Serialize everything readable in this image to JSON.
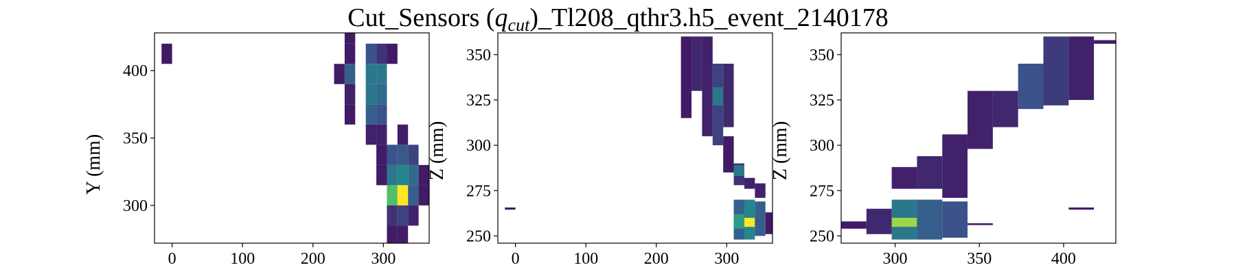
{
  "figure": {
    "title_prefix": "Cut_Sensors (",
    "title_math": "q",
    "title_sub": "cut",
    "title_suffix": ")_Tl208_qthr3.h5_event_2140178"
  },
  "colors": {
    "viridis_low": "#440154",
    "viridis_mid": "#21918c",
    "viridis_high": "#fde725"
  },
  "chart_data": [
    {
      "type": "heatmap",
      "id": "xy",
      "xlabel": "",
      "ylabel": "Y (mm)",
      "xlim": [
        -25,
        365
      ],
      "ylim": [
        272,
        428
      ],
      "xticks": [
        0,
        100,
        200,
        300
      ],
      "yticks": [
        300,
        350,
        400
      ],
      "cells": [
        {
          "x": -15,
          "y": 405,
          "w": 15,
          "h": 15,
          "v": 0.08
        },
        {
          "x": 230,
          "y": 390,
          "w": 15,
          "h": 15,
          "v": 0.08
        },
        {
          "x": 245,
          "y": 420,
          "w": 15,
          "h": 15,
          "v": 0.08
        },
        {
          "x": 245,
          "y": 405,
          "w": 15,
          "h": 15,
          "v": 0.08
        },
        {
          "x": 245,
          "y": 390,
          "w": 15,
          "h": 15,
          "v": 0.3
        },
        {
          "x": 245,
          "y": 375,
          "w": 15,
          "h": 15,
          "v": 0.1
        },
        {
          "x": 245,
          "y": 360,
          "w": 15,
          "h": 15,
          "v": 0.08
        },
        {
          "x": 275,
          "y": 405,
          "w": 15,
          "h": 15,
          "v": 0.25
        },
        {
          "x": 275,
          "y": 390,
          "w": 15,
          "h": 15,
          "v": 0.4
        },
        {
          "x": 275,
          "y": 375,
          "w": 15,
          "h": 15,
          "v": 0.4
        },
        {
          "x": 275,
          "y": 360,
          "w": 15,
          "h": 15,
          "v": 0.3
        },
        {
          "x": 275,
          "y": 345,
          "w": 15,
          "h": 15,
          "v": 0.1
        },
        {
          "x": 290,
          "y": 405,
          "w": 15,
          "h": 15,
          "v": 0.15
        },
        {
          "x": 290,
          "y": 390,
          "w": 15,
          "h": 15,
          "v": 0.4
        },
        {
          "x": 290,
          "y": 375,
          "w": 15,
          "h": 15,
          "v": 0.35
        },
        {
          "x": 290,
          "y": 360,
          "w": 15,
          "h": 15,
          "v": 0.25
        },
        {
          "x": 290,
          "y": 345,
          "w": 15,
          "h": 15,
          "v": 0.1
        },
        {
          "x": 290,
          "y": 330,
          "w": 15,
          "h": 15,
          "v": 0.08
        },
        {
          "x": 290,
          "y": 315,
          "w": 15,
          "h": 15,
          "v": 0.08
        },
        {
          "x": 305,
          "y": 405,
          "w": 15,
          "h": 15,
          "v": 0.08
        },
        {
          "x": 305,
          "y": 330,
          "w": 15,
          "h": 15,
          "v": 0.25
        },
        {
          "x": 305,
          "y": 315,
          "w": 15,
          "h": 15,
          "v": 0.4
        },
        {
          "x": 305,
          "y": 300,
          "w": 15,
          "h": 15,
          "v": 0.7
        },
        {
          "x": 305,
          "y": 285,
          "w": 15,
          "h": 15,
          "v": 0.15
        },
        {
          "x": 305,
          "y": 270,
          "w": 15,
          "h": 15,
          "v": 0.08
        },
        {
          "x": 320,
          "y": 345,
          "w": 15,
          "h": 15,
          "v": 0.08
        },
        {
          "x": 320,
          "y": 330,
          "w": 15,
          "h": 15,
          "v": 0.28
        },
        {
          "x": 320,
          "y": 315,
          "w": 15,
          "h": 15,
          "v": 0.45
        },
        {
          "x": 320,
          "y": 300,
          "w": 15,
          "h": 15,
          "v": 1.0
        },
        {
          "x": 320,
          "y": 285,
          "w": 15,
          "h": 15,
          "v": 0.2
        },
        {
          "x": 320,
          "y": 270,
          "w": 15,
          "h": 15,
          "v": 0.08
        },
        {
          "x": 335,
          "y": 330,
          "w": 15,
          "h": 15,
          "v": 0.2
        },
        {
          "x": 335,
          "y": 315,
          "w": 15,
          "h": 15,
          "v": 0.35
        },
        {
          "x": 335,
          "y": 300,
          "w": 15,
          "h": 15,
          "v": 0.3
        },
        {
          "x": 335,
          "y": 285,
          "w": 15,
          "h": 15,
          "v": 0.1
        },
        {
          "x": 350,
          "y": 315,
          "w": 15,
          "h": 15,
          "v": 0.08
        },
        {
          "x": 350,
          "y": 300,
          "w": 15,
          "h": 15,
          "v": 0.08
        }
      ]
    },
    {
      "type": "heatmap",
      "id": "xz",
      "xlabel": "",
      "ylabel": "Z (mm)",
      "xlim": [
        -25,
        365
      ],
      "ylim": [
        246,
        362
      ],
      "xticks": [
        0,
        100,
        200,
        300
      ],
      "yticks": [
        250,
        275,
        300,
        325,
        350
      ],
      "cells": [
        {
          "x": -15,
          "y": 264.5,
          "w": 15,
          "h": 1.2,
          "v": 0.08
        },
        {
          "x": 235,
          "y": 315,
          "w": 15,
          "h": 45,
          "v": 0.08
        },
        {
          "x": 250,
          "y": 330,
          "w": 15,
          "h": 30,
          "v": 0.12
        },
        {
          "x": 265,
          "y": 305,
          "w": 15,
          "h": 55,
          "v": 0.1
        },
        {
          "x": 280,
          "y": 300,
          "w": 15,
          "h": 45,
          "v": 0.2
        },
        {
          "x": 280,
          "y": 322,
          "w": 15,
          "h": 10,
          "v": 0.4
        },
        {
          "x": 295,
          "y": 310,
          "w": 15,
          "h": 35,
          "v": 0.12
        },
        {
          "x": 295,
          "y": 285,
          "w": 15,
          "h": 20,
          "v": 0.08
        },
        {
          "x": 310,
          "y": 278,
          "w": 15,
          "h": 12,
          "v": 0.15
        },
        {
          "x": 310,
          "y": 283,
          "w": 15,
          "h": 6,
          "v": 0.4
        },
        {
          "x": 325,
          "y": 276,
          "w": 15,
          "h": 6,
          "v": 0.1
        },
        {
          "x": 340,
          "y": 271,
          "w": 15,
          "h": 8,
          "v": 0.1
        },
        {
          "x": 310,
          "y": 248,
          "w": 15,
          "h": 22,
          "v": 0.3
        },
        {
          "x": 310,
          "y": 254,
          "w": 15,
          "h": 8,
          "v": 0.55
        },
        {
          "x": 325,
          "y": 248,
          "w": 15,
          "h": 22,
          "v": 0.45
        },
        {
          "x": 325,
          "y": 255,
          "w": 15,
          "h": 5,
          "v": 1.0
        },
        {
          "x": 340,
          "y": 250,
          "w": 15,
          "h": 19,
          "v": 0.3
        },
        {
          "x": 355,
          "y": 251,
          "w": 10,
          "h": 12,
          "v": 0.08
        }
      ]
    },
    {
      "type": "heatmap",
      "id": "yz",
      "xlabel": "",
      "ylabel": "Z (mm)",
      "xlim": [
        268,
        431
      ],
      "ylim": [
        246,
        362
      ],
      "xticks": [
        300,
        350,
        400
      ],
      "yticks": [
        250,
        275,
        300,
        325,
        350
      ],
      "cells": [
        {
          "x": 268,
          "y": 254,
          "w": 15,
          "h": 4,
          "v": 0.08
        },
        {
          "x": 283,
          "y": 251,
          "w": 15,
          "h": 14,
          "v": 0.12
        },
        {
          "x": 298,
          "y": 276,
          "w": 15,
          "h": 12,
          "v": 0.1
        },
        {
          "x": 298,
          "y": 248,
          "w": 15,
          "h": 22,
          "v": 0.4
        },
        {
          "x": 298,
          "y": 255,
          "w": 15,
          "h": 5,
          "v": 0.85
        },
        {
          "x": 313,
          "y": 276,
          "w": 15,
          "h": 18,
          "v": 0.12
        },
        {
          "x": 313,
          "y": 248,
          "w": 15,
          "h": 22,
          "v": 0.3
        },
        {
          "x": 328,
          "y": 271,
          "w": 15,
          "h": 35,
          "v": 0.1
        },
        {
          "x": 328,
          "y": 249,
          "w": 15,
          "h": 20,
          "v": 0.25
        },
        {
          "x": 343,
          "y": 256,
          "w": 15,
          "h": 1,
          "v": 0.08
        },
        {
          "x": 343,
          "y": 298,
          "w": 15,
          "h": 32,
          "v": 0.1
        },
        {
          "x": 358,
          "y": 310,
          "w": 15,
          "h": 20,
          "v": 0.12
        },
        {
          "x": 373,
          "y": 320,
          "w": 15,
          "h": 25,
          "v": 0.25
        },
        {
          "x": 388,
          "y": 322,
          "w": 15,
          "h": 38,
          "v": 0.18
        },
        {
          "x": 403,
          "y": 325,
          "w": 15,
          "h": 35,
          "v": 0.1
        },
        {
          "x": 403,
          "y": 264.5,
          "w": 15,
          "h": 1.2,
          "v": 0.08
        },
        {
          "x": 418,
          "y": 356,
          "w": 13,
          "h": 2,
          "v": 0.08
        }
      ]
    }
  ]
}
